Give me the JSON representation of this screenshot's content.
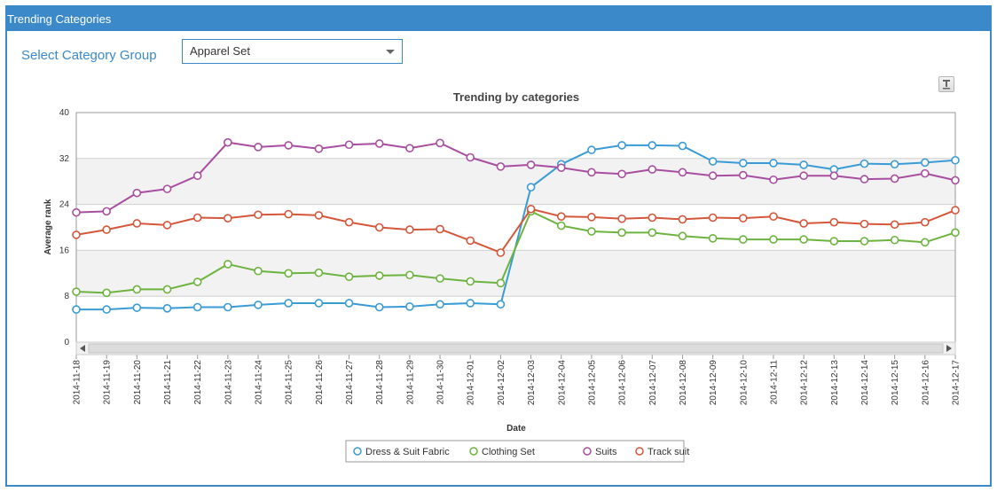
{
  "panel": {
    "title": "Trending Categories"
  },
  "filter": {
    "label": "Select Category Group",
    "selected": "Apparel Set"
  },
  "colors": {
    "dress": "#3a9bd5",
    "clothing": "#6db33f",
    "suits": "#a84ea0",
    "track": "#d5573b",
    "band": "#f2f2f2",
    "header": "#3b89c9"
  },
  "chart_data": {
    "type": "line",
    "title": "Trending by categories",
    "xlabel": "Date",
    "ylabel": "Average rank",
    "ylim": [
      0,
      40
    ],
    "yticks": [
      0,
      8,
      16,
      24,
      32,
      40
    ],
    "x": [
      "2014-11-18",
      "2014-11-19",
      "2014-11-20",
      "2014-11-21",
      "2014-11-22",
      "2014-11-23",
      "2014-11-24",
      "2014-11-25",
      "2014-11-26",
      "2014-11-27",
      "2014-11-28",
      "2014-11-29",
      "2014-11-30",
      "2014-12-01",
      "2014-12-02",
      "2014-12-03",
      "2014-12-04",
      "2014-12-05",
      "2014-12-06",
      "2014-12-07",
      "2014-12-08",
      "2014-12-09",
      "2014-12-10",
      "2014-12-11",
      "2014-12-12",
      "2014-12-13",
      "2014-12-14",
      "2014-12-15",
      "2014-12-16",
      "2014-12-17"
    ],
    "series": [
      {
        "name": "Dress & Suit Fabric",
        "color": "#3a9bd5",
        "values": [
          5.7,
          5.7,
          6.0,
          5.9,
          6.1,
          6.1,
          6.5,
          6.8,
          6.8,
          6.8,
          6.1,
          6.2,
          6.6,
          6.8,
          6.6,
          27.0,
          31.0,
          33.5,
          34.3,
          34.3,
          34.2,
          31.5,
          31.2,
          31.2,
          30.9,
          30.1,
          31.1,
          31.0,
          31.3,
          31.7
        ]
      },
      {
        "name": "Clothing Set",
        "color": "#6db33f",
        "values": [
          8.8,
          8.6,
          9.2,
          9.2,
          10.5,
          13.6,
          12.4,
          12.0,
          12.1,
          11.4,
          11.6,
          11.7,
          11.1,
          10.6,
          10.3,
          22.8,
          20.3,
          19.3,
          19.1,
          19.1,
          18.5,
          18.1,
          17.9,
          17.9,
          17.9,
          17.6,
          17.6,
          17.8,
          17.4,
          19.1
        ]
      },
      {
        "name": "Suits",
        "color": "#a84ea0",
        "values": [
          22.6,
          22.8,
          26.0,
          26.7,
          29.0,
          34.8,
          34.0,
          34.3,
          33.7,
          34.4,
          34.6,
          33.8,
          34.7,
          32.2,
          30.6,
          30.9,
          30.4,
          29.6,
          29.3,
          30.1,
          29.6,
          29.0,
          29.1,
          28.3,
          29.0,
          29.0,
          28.4,
          28.5,
          29.4,
          28.2
        ]
      },
      {
        "name": "Track suit",
        "color": "#d5573b",
        "values": [
          18.7,
          19.6,
          20.7,
          20.4,
          21.7,
          21.6,
          22.2,
          22.3,
          22.1,
          20.9,
          20.0,
          19.6,
          19.7,
          17.7,
          15.6,
          23.2,
          21.9,
          21.8,
          21.5,
          21.7,
          21.4,
          21.7,
          21.6,
          21.9,
          20.7,
          20.9,
          20.6,
          20.5,
          20.9,
          23.0
        ]
      }
    ]
  }
}
